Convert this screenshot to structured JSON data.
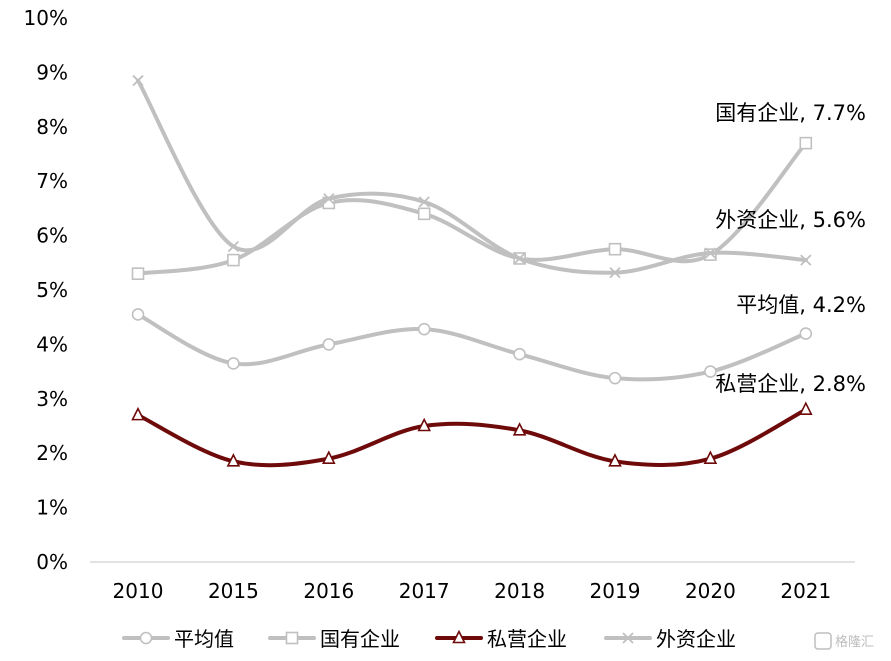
{
  "chart_data": {
    "type": "line",
    "categories": [
      "2010",
      "2015",
      "2016",
      "2017",
      "2018",
      "2019",
      "2020",
      "2021"
    ],
    "ylim": [
      0,
      10
    ],
    "y_ticks": [
      "0%",
      "1%",
      "2%",
      "3%",
      "4%",
      "5%",
      "6%",
      "7%",
      "8%",
      "9%",
      "10%"
    ],
    "grid": false,
    "legend_position": "bottom",
    "series": [
      {
        "key": "avg",
        "name": "平均值",
        "color": "#c0c0c0",
        "marker": "circle",
        "values": [
          4.55,
          3.65,
          4.0,
          4.28,
          3.82,
          3.38,
          3.5,
          4.2
        ],
        "annotation": "平均值, 4.2%"
      },
      {
        "key": "soe",
        "name": "国有企业",
        "color": "#c0c0c0",
        "marker": "square",
        "values": [
          5.3,
          5.55,
          6.6,
          6.4,
          5.58,
          5.75,
          5.65,
          7.7
        ],
        "annotation": "国有企业, 7.7%"
      },
      {
        "key": "private",
        "name": "私营企业",
        "color": "#6e0a0a",
        "marker": "triangle",
        "values": [
          2.7,
          1.85,
          1.9,
          2.5,
          2.42,
          1.85,
          1.9,
          2.8
        ],
        "annotation": "私营企业, 2.8%"
      },
      {
        "key": "foreign",
        "name": "外资企业",
        "color": "#c0c0c0",
        "marker": "x",
        "values": [
          8.85,
          5.8,
          6.68,
          6.62,
          5.58,
          5.32,
          5.68,
          5.55
        ],
        "annotation": "外资企业, 5.6%"
      }
    ]
  },
  "watermark": {
    "text": "格隆汇"
  }
}
